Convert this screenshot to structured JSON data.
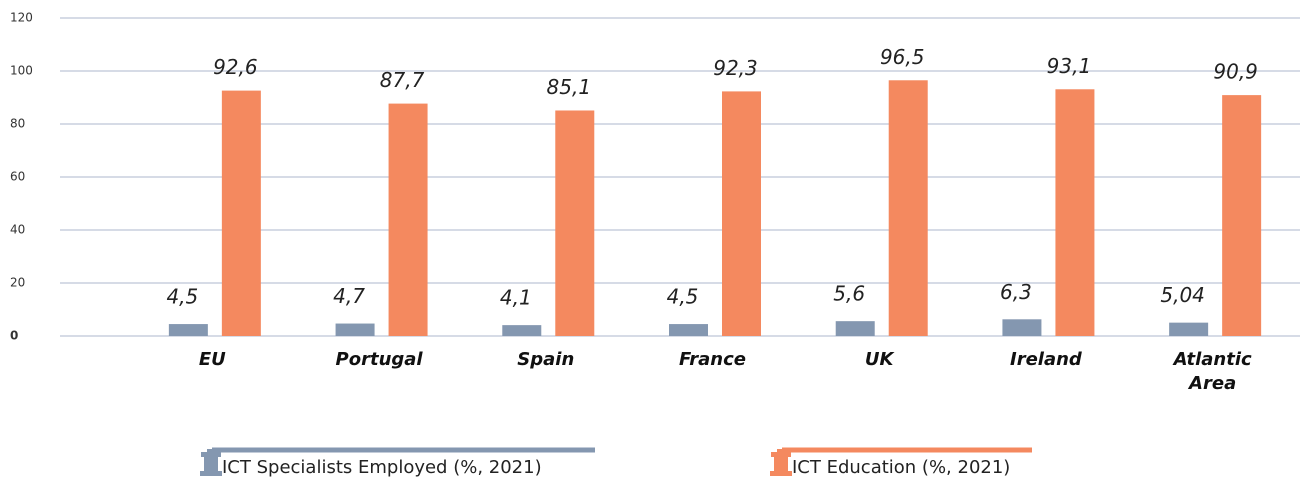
{
  "chart_data": {
    "type": "bar",
    "categories": [
      "EU",
      "Portugal",
      "Spain",
      "France",
      "UK",
      "Ireland",
      "Atlantic Area"
    ],
    "series": [
      {
        "name": "ICT Specialists Employed (%, 2021)",
        "color": "#8497b0",
        "values": [
          4.5,
          4.7,
          4.1,
          4.5,
          5.6,
          6.3,
          5.04
        ],
        "value_labels": [
          "4,5",
          "4,7",
          "4,1",
          "4,5",
          "5,6",
          "6,3",
          "5,04"
        ]
      },
      {
        "name": "ICT Education (%, 2021)",
        "color": "#f4895f",
        "values": [
          92.6,
          87.7,
          85.1,
          92.3,
          96.5,
          93.1,
          90.9
        ],
        "value_labels": [
          "92,6",
          "87,7",
          "85,1",
          "92,3",
          "96,5",
          "93,1",
          "90,9"
        ]
      }
    ],
    "ylim": [
      0,
      120
    ],
    "yticks": [
      0,
      20,
      40,
      60,
      80,
      100,
      120
    ],
    "grid": true,
    "legend": "bottom"
  }
}
